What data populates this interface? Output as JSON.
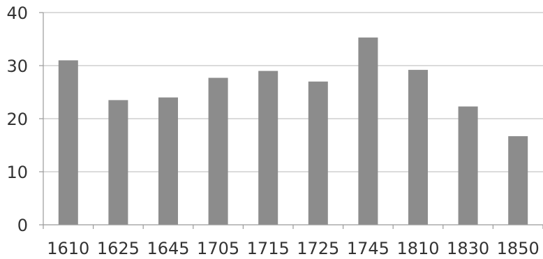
{
  "chart_data": {
    "type": "bar",
    "title": "",
    "xlabel": "",
    "ylabel": "",
    "categories": [
      "1610",
      "1625",
      "1645",
      "1705",
      "1715",
      "1725",
      "1745",
      "1810",
      "1830",
      "1850"
    ],
    "values": [
      31,
      23.5,
      24,
      27.7,
      29,
      27,
      35.3,
      29.2,
      22.3,
      16.7
    ],
    "ylim": [
      0,
      40
    ],
    "yticks": [
      "0",
      "10",
      "20",
      "30",
      "40"
    ],
    "grid": true,
    "bar_color": "#8c8c8c"
  }
}
